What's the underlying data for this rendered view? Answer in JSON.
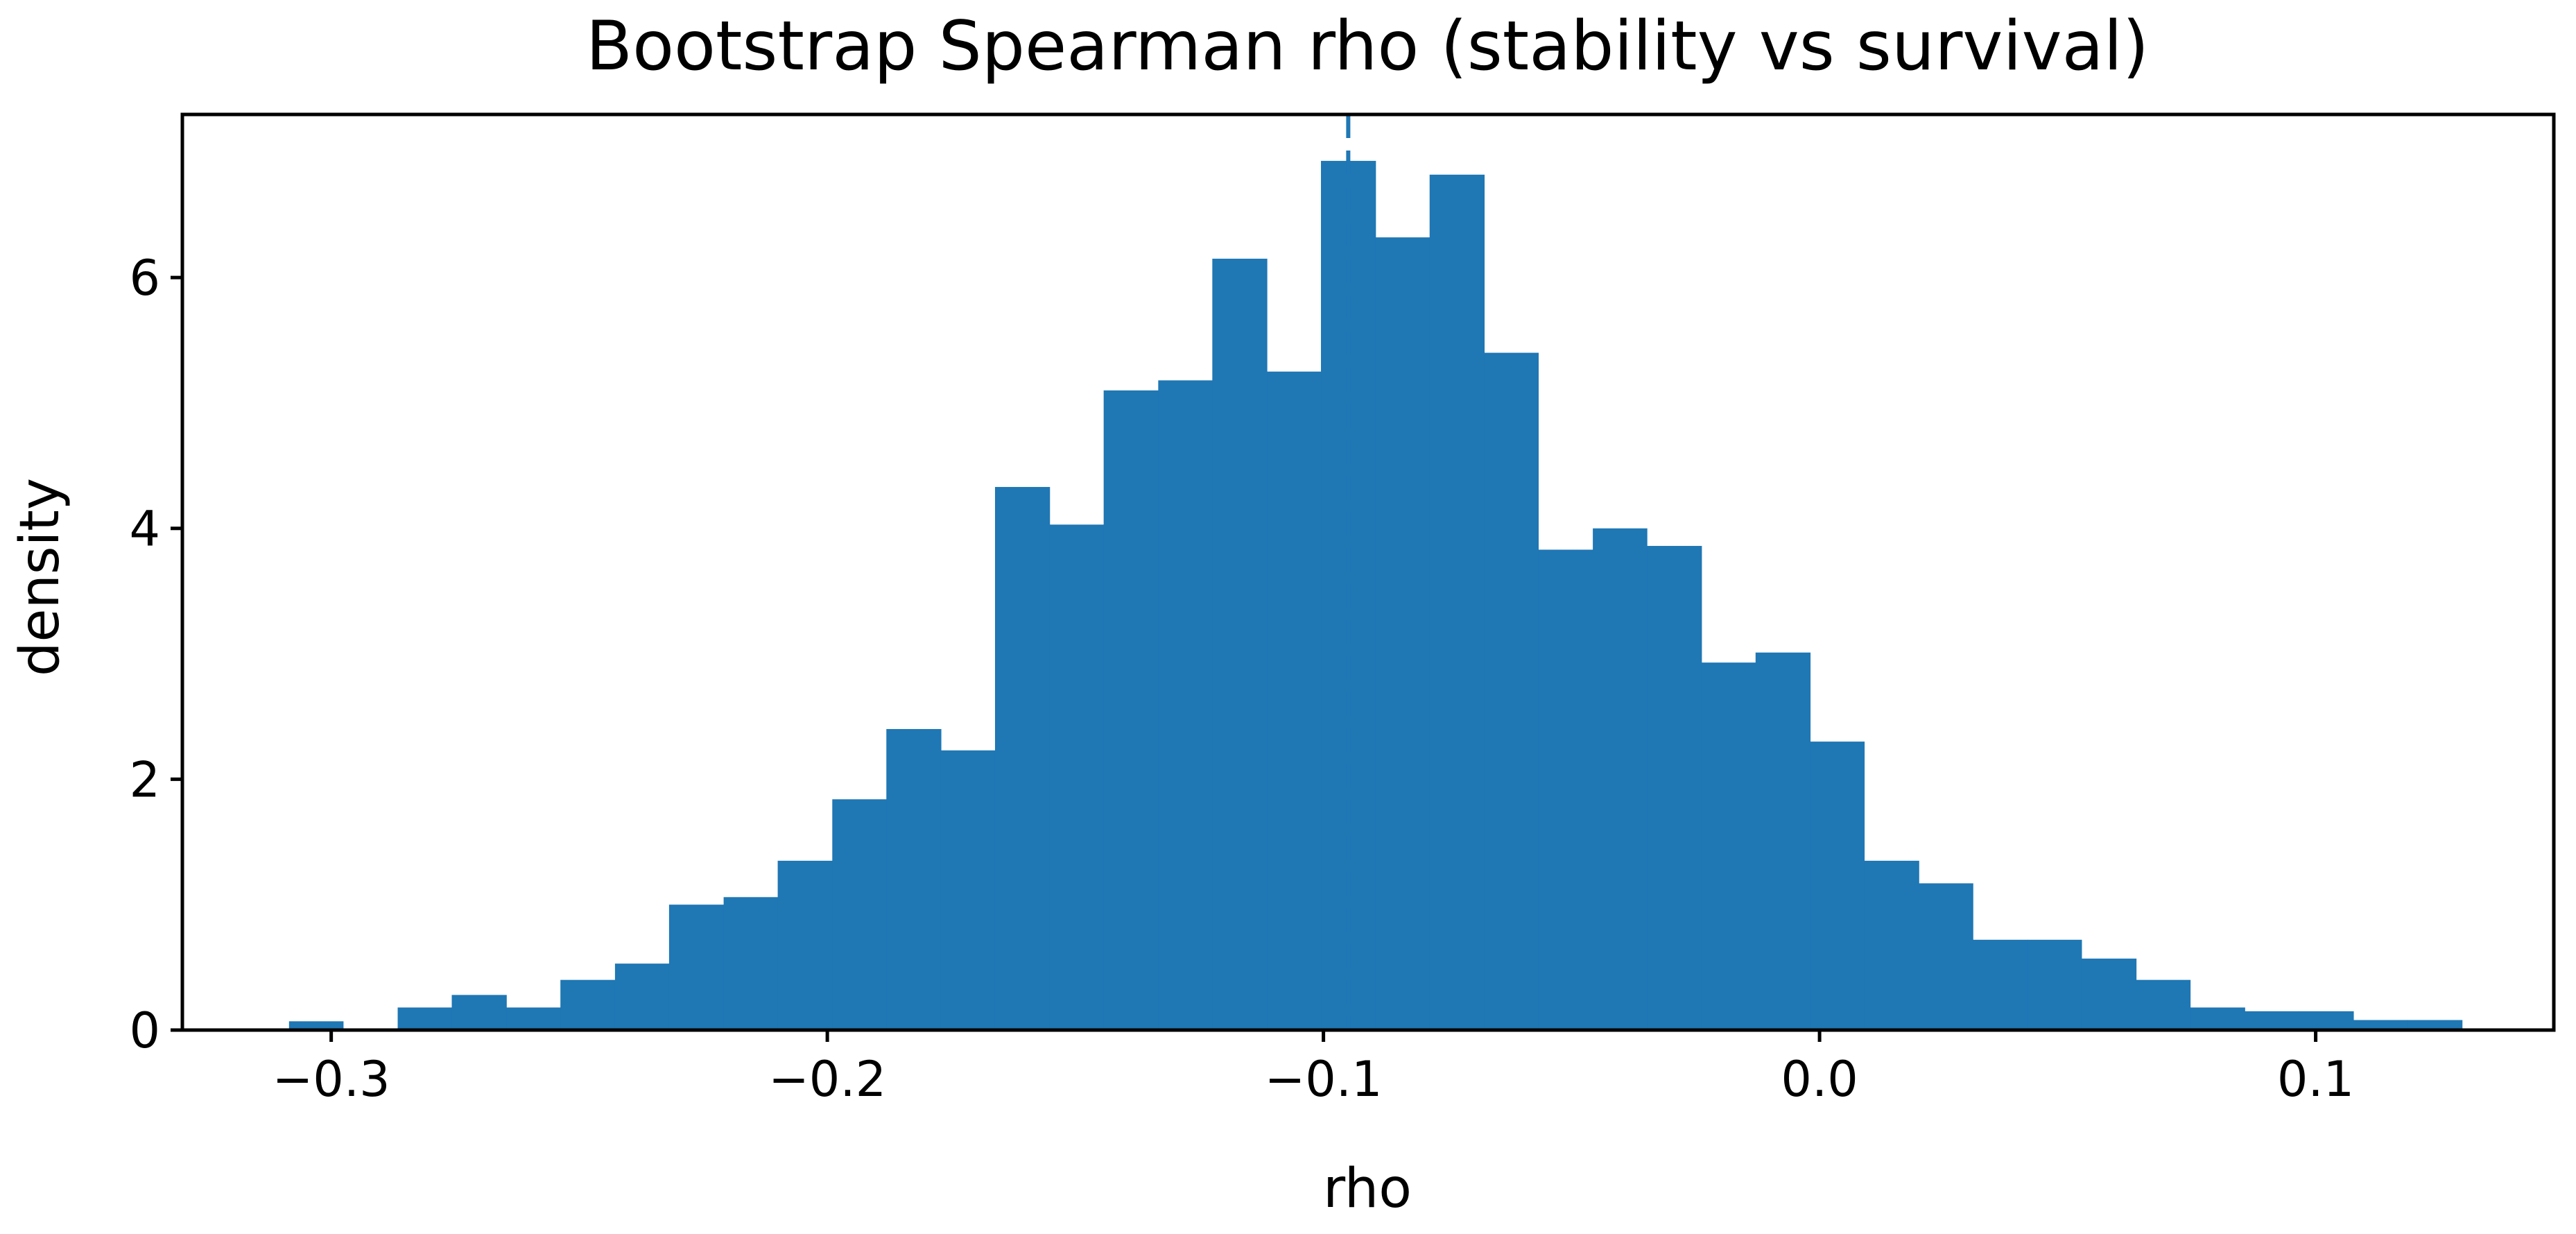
{
  "chart_data": {
    "type": "bar",
    "title": "Bootstrap Spearman rho (stability vs survival)",
    "xlabel": "rho",
    "ylabel": "density",
    "xlim": [
      -0.33,
      0.148
    ],
    "ylim": [
      0,
      7.3
    ],
    "grid": false,
    "legend": "none",
    "bar_color": "#1f77b4",
    "x_ticks": [
      {
        "value": -0.3,
        "label": "−0.3"
      },
      {
        "value": -0.2,
        "label": "−0.2"
      },
      {
        "value": -0.1,
        "label": "−0.1"
      },
      {
        "value": 0.0,
        "label": "0.0"
      },
      {
        "value": 0.1,
        "label": "0.1"
      }
    ],
    "y_ticks": [
      {
        "value": 0,
        "label": "0"
      },
      {
        "value": 2,
        "label": "2"
      },
      {
        "value": 4,
        "label": "4"
      },
      {
        "value": 6,
        "label": "6"
      }
    ],
    "bins": [
      {
        "x0": -0.3085,
        "x1": -0.2976,
        "value": 0.07
      },
      {
        "x0": -0.2976,
        "x1": -0.2866,
        "value": 0.0
      },
      {
        "x0": -0.2866,
        "x1": -0.2757,
        "value": 0.18
      },
      {
        "x0": -0.2757,
        "x1": -0.2647,
        "value": 0.28
      },
      {
        "x0": -0.2647,
        "x1": -0.2538,
        "value": 0.18
      },
      {
        "x0": -0.2538,
        "x1": -0.2428,
        "value": 0.4
      },
      {
        "x0": -0.2428,
        "x1": -0.2319,
        "value": 0.53
      },
      {
        "x0": -0.2319,
        "x1": -0.2209,
        "value": 1.0
      },
      {
        "x0": -0.2209,
        "x1": -0.21,
        "value": 1.06
      },
      {
        "x0": -0.21,
        "x1": -0.199,
        "value": 1.35
      },
      {
        "x0": -0.199,
        "x1": -0.1881,
        "value": 1.84
      },
      {
        "x0": -0.1881,
        "x1": -0.1771,
        "value": 2.4
      },
      {
        "x0": -0.1771,
        "x1": -0.1662,
        "value": 2.23
      },
      {
        "x0": -0.1662,
        "x1": -0.1552,
        "value": 4.33
      },
      {
        "x0": -0.1552,
        "x1": -0.1443,
        "value": 4.03
      },
      {
        "x0": -0.1443,
        "x1": -0.1333,
        "value": 5.1
      },
      {
        "x0": -0.1333,
        "x1": -0.1224,
        "value": 5.18
      },
      {
        "x0": -0.1224,
        "x1": -0.1114,
        "value": 6.15
      },
      {
        "x0": -0.1114,
        "x1": -0.1005,
        "value": 5.25
      },
      {
        "x0": -0.1005,
        "x1": -0.0895,
        "value": 6.93
      },
      {
        "x0": -0.0895,
        "x1": -0.0786,
        "value": 6.32
      },
      {
        "x0": -0.0786,
        "x1": -0.0676,
        "value": 6.82
      },
      {
        "x0": -0.0676,
        "x1": -0.0567,
        "value": 5.4
      },
      {
        "x0": -0.0567,
        "x1": -0.0457,
        "value": 3.83
      },
      {
        "x0": -0.0457,
        "x1": -0.0348,
        "value": 4.0
      },
      {
        "x0": -0.0348,
        "x1": -0.0238,
        "value": 3.86
      },
      {
        "x0": -0.0238,
        "x1": -0.0129,
        "value": 2.93
      },
      {
        "x0": -0.0129,
        "x1": -0.0019,
        "value": 3.01
      },
      {
        "x0": -0.0019,
        "x1": 0.009,
        "value": 2.3
      },
      {
        "x0": 0.009,
        "x1": 0.02,
        "value": 1.35
      },
      {
        "x0": 0.02,
        "x1": 0.0309,
        "value": 1.17
      },
      {
        "x0": 0.0309,
        "x1": 0.0419,
        "value": 0.72
      },
      {
        "x0": 0.0419,
        "x1": 0.0528,
        "value": 0.72
      },
      {
        "x0": 0.0528,
        "x1": 0.0638,
        "value": 0.57
      },
      {
        "x0": 0.0638,
        "x1": 0.0747,
        "value": 0.4
      },
      {
        "x0": 0.0747,
        "x1": 0.0857,
        "value": 0.18
      },
      {
        "x0": 0.0857,
        "x1": 0.0966,
        "value": 0.15
      },
      {
        "x0": 0.0966,
        "x1": 0.1076,
        "value": 0.15
      },
      {
        "x0": 0.1076,
        "x1": 0.1185,
        "value": 0.08
      },
      {
        "x0": 0.1185,
        "x1": 0.1295,
        "value": 0.08
      }
    ],
    "reference_line": {
      "x": -0.095,
      "style": "dashed"
    }
  }
}
